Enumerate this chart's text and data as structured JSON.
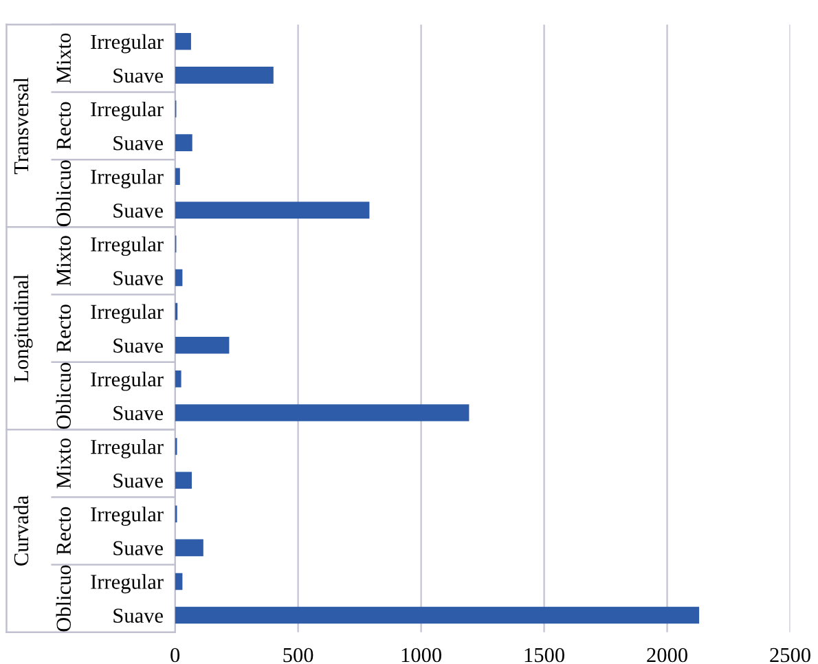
{
  "chart_data": {
    "type": "bar",
    "orientation": "horizontal",
    "categories": [
      "Irregular",
      "Suave",
      "Irregular",
      "Suave",
      "Irregular",
      "Suave",
      "Irregular",
      "Suave",
      "Irregular",
      "Suave",
      "Irregular",
      "Suave",
      "Irregular",
      "Suave",
      "Irregular",
      "Suave",
      "Irregular",
      "Suave"
    ],
    "values": [
      65,
      400,
      5,
      70,
      20,
      790,
      5,
      30,
      10,
      220,
      25,
      1195,
      8,
      68,
      8,
      115,
      30,
      2130
    ],
    "color": "#2e5ca8",
    "xlim": [
      0,
      2500
    ],
    "xticks": [
      0,
      500,
      1000,
      1500,
      2000,
      2500
    ],
    "grid": "x",
    "annotations": [
      "Mixto",
      "Recto",
      "Oblicuo",
      "Mixto",
      "Recto",
      "Oblicuo",
      "Mixto",
      "Recto",
      "Oblicuo",
      "Transversal",
      "Longitudinal",
      "Curvada"
    ]
  }
}
